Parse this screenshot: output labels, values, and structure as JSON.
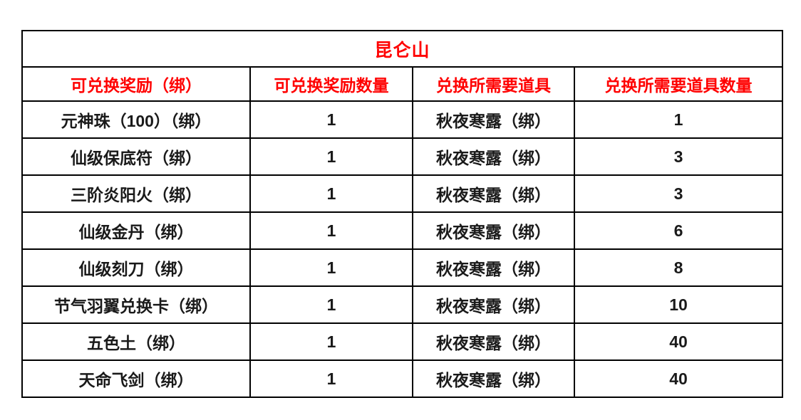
{
  "table": {
    "title": "昆仑山",
    "columns": [
      "可兑换奖励（绑）",
      "可兑换奖励数量",
      "兑换所需要道具",
      "兑换所需要道具数量"
    ],
    "rows": [
      [
        "元神珠（100）（绑）",
        "1",
        "秋夜寒露（绑）",
        "1"
      ],
      [
        "仙级保底符（绑）",
        "1",
        "秋夜寒露（绑）",
        "3"
      ],
      [
        "三阶炎阳火（绑）",
        "1",
        "秋夜寒露（绑）",
        "3"
      ],
      [
        "仙级金丹（绑）",
        "1",
        "秋夜寒露（绑）",
        "6"
      ],
      [
        "仙级刻刀（绑）",
        "1",
        "秋夜寒露（绑）",
        "8"
      ],
      [
        "节气羽翼兑换卡（绑）",
        "1",
        "秋夜寒露（绑）",
        "10"
      ],
      [
        "五色土（绑）",
        "1",
        "秋夜寒露（绑）",
        "40"
      ],
      [
        "天命飞剑（绑）",
        "1",
        "秋夜寒露（绑）",
        "40"
      ]
    ],
    "colors": {
      "title_text": "#ff0000",
      "header_text": "#ff0000",
      "body_text": "#1a1a1a",
      "border": "#000000",
      "background": "#ffffff"
    }
  }
}
